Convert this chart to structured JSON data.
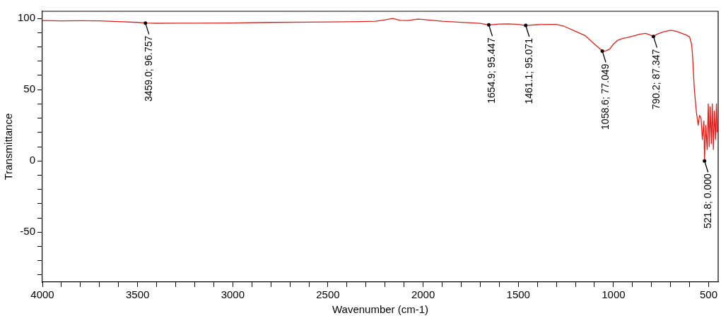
{
  "chart_data": {
    "type": "line",
    "xlabel": "Wavenumber (cm-1)",
    "ylabel": "Transmittance",
    "x": [
      4000,
      3900,
      3800,
      3700,
      3600,
      3500,
      3459.0,
      3400,
      3200,
      3000,
      2800,
      2600,
      2400,
      2250,
      2200,
      2160,
      2120,
      2080,
      2030,
      2000,
      1900,
      1800,
      1700,
      1654.9,
      1600,
      1550,
      1500,
      1461.1,
      1400,
      1350,
      1300,
      1260,
      1200,
      1150,
      1100,
      1070,
      1058.6,
      1040,
      1020,
      1000,
      980,
      950,
      930,
      900,
      860,
      830,
      810,
      790.2,
      770,
      740,
      700,
      670,
      640,
      620,
      600,
      590,
      585,
      580,
      575,
      565,
      555,
      548,
      540,
      533,
      525,
      521.8,
      515,
      508,
      502,
      497,
      492,
      486,
      481,
      475,
      470,
      464,
      459,
      455
    ],
    "series": [
      {
        "color": "#e0201c",
        "values": [
          98.5,
          98.3,
          98.4,
          98.3,
          97.8,
          97.2,
          96.757,
          96.6,
          96.7,
          96.8,
          97.2,
          97.4,
          97.6,
          98.0,
          99.0,
          100.0,
          98.6,
          98.5,
          99.5,
          99.2,
          98.0,
          97.3,
          96.5,
          95.447,
          96.0,
          96.2,
          95.8,
          95.071,
          95.6,
          95.8,
          95.8,
          94.5,
          91.0,
          88.0,
          82.0,
          78.5,
          77.049,
          77.2,
          78.5,
          82.0,
          84.5,
          86.0,
          86.5,
          87.5,
          89.0,
          89.5,
          88.5,
          87.347,
          89.0,
          90.5,
          91.7,
          91.0,
          89.5,
          88.5,
          87.0,
          82.0,
          75.0,
          62.0,
          50.0,
          35.0,
          25.0,
          32.0,
          30.0,
          15.0,
          28.0,
          0.0,
          25.0,
          8.0,
          40.0,
          10.0,
          38.0,
          12.0,
          40.0,
          8.0,
          35.0,
          15.0,
          40.0,
          20.0
        ]
      }
    ],
    "xlim": [
      4000,
      450
    ],
    "xticks": [
      {
        "value": 4000,
        "label": "4000"
      },
      {
        "value": 3900,
        "label": null
      },
      {
        "value": 3800,
        "label": null
      },
      {
        "value": 3700,
        "label": null
      },
      {
        "value": 3600,
        "label": null
      },
      {
        "value": 3500,
        "label": "3500"
      },
      {
        "value": 3400,
        "label": null
      },
      {
        "value": 3300,
        "label": null
      },
      {
        "value": 3200,
        "label": null
      },
      {
        "value": 3100,
        "label": null
      },
      {
        "value": 3000,
        "label": "3000"
      },
      {
        "value": 2900,
        "label": null
      },
      {
        "value": 2800,
        "label": null
      },
      {
        "value": 2700,
        "label": null
      },
      {
        "value": 2600,
        "label": null
      },
      {
        "value": 2500,
        "label": "2500"
      },
      {
        "value": 2400,
        "label": null
      },
      {
        "value": 2300,
        "label": null
      },
      {
        "value": 2200,
        "label": null
      },
      {
        "value": 2100,
        "label": null
      },
      {
        "value": 2000,
        "label": "2000"
      },
      {
        "value": 1900,
        "label": null
      },
      {
        "value": 1800,
        "label": null
      },
      {
        "value": 1700,
        "label": null
      },
      {
        "value": 1600,
        "label": null
      },
      {
        "value": 1500,
        "label": "1500"
      },
      {
        "value": 1400,
        "label": null
      },
      {
        "value": 1300,
        "label": null
      },
      {
        "value": 1200,
        "label": null
      },
      {
        "value": 1100,
        "label": null
      },
      {
        "value": 1000,
        "label": "1000"
      },
      {
        "value": 900,
        "label": null
      },
      {
        "value": 800,
        "label": null
      },
      {
        "value": 700,
        "label": null
      },
      {
        "value": 600,
        "label": null
      },
      {
        "value": 500,
        "label": "500"
      }
    ],
    "ylim": [
      -85,
      105
    ],
    "yticks": [
      {
        "value": -80,
        "label": null
      },
      {
        "value": -70,
        "label": null
      },
      {
        "value": -60,
        "label": null
      },
      {
        "value": -50,
        "label": "-50"
      },
      {
        "value": -40,
        "label": null
      },
      {
        "value": -30,
        "label": null
      },
      {
        "value": -20,
        "label": null
      },
      {
        "value": -10,
        "label": null
      },
      {
        "value": 0,
        "label": "0"
      },
      {
        "value": 10,
        "label": null
      },
      {
        "value": 20,
        "label": null
      },
      {
        "value": 30,
        "label": null
      },
      {
        "value": 40,
        "label": null
      },
      {
        "value": 50,
        "label": "50"
      },
      {
        "value": 60,
        "label": null
      },
      {
        "value": 70,
        "label": null
      },
      {
        "value": 80,
        "label": null
      },
      {
        "value": 90,
        "label": null
      },
      {
        "value": 100,
        "label": "100"
      }
    ],
    "annotations": [
      {
        "text": "3459.0; 96.757",
        "x": 3459.0,
        "y": 96.757
      },
      {
        "text": "1654.9; 95.447",
        "x": 1654.9,
        "y": 95.447
      },
      {
        "text": "1461.1; 95.071",
        "x": 1461.1,
        "y": 95.071
      },
      {
        "text": "1058.6; 77.049",
        "x": 1058.6,
        "y": 77.049
      },
      {
        "text": "790.2; 87.347",
        "x": 790.2,
        "y": 87.347
      },
      {
        "text": "521.8; 0.000",
        "x": 521.8,
        "y": 0.0
      }
    ],
    "grid": false,
    "legend": false,
    "marker": "none",
    "line_style": "solid"
  }
}
